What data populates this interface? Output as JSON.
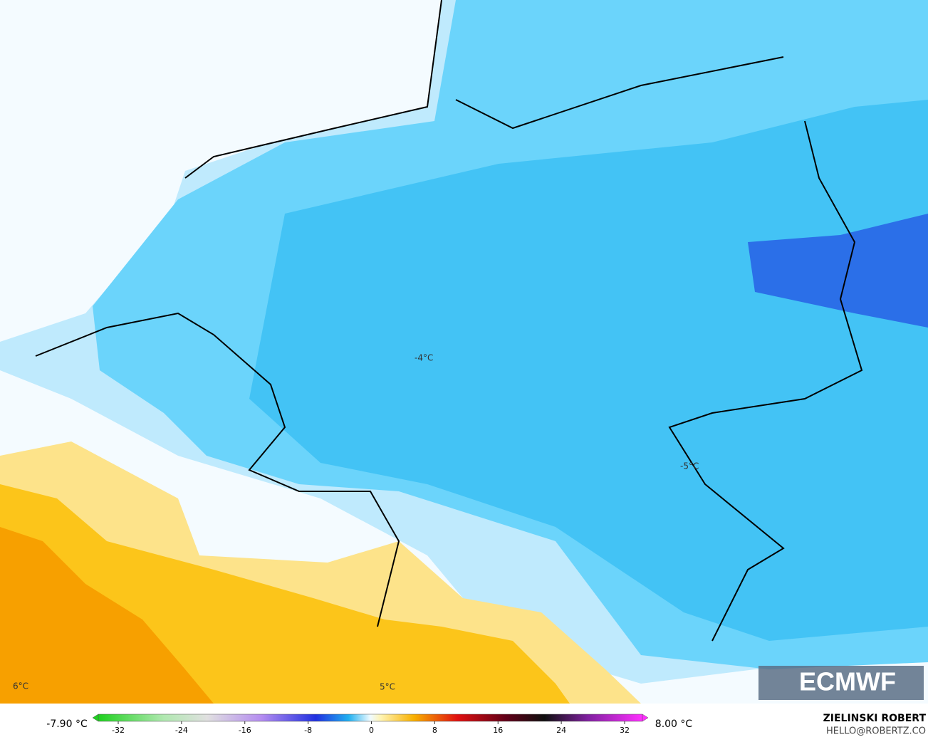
{
  "map": {
    "labels": [
      "-4°C",
      "-5°C",
      "6°C",
      "5°C"
    ],
    "logo": "ECMWF"
  },
  "colorbar": {
    "min_label": "-7.90 °C",
    "max_label": "8.00 °C",
    "ticks": [
      -32,
      -24,
      -16,
      -8,
      0,
      8,
      16,
      24,
      32
    ]
  },
  "credit": {
    "name": "ZIELINSKI ROBERT",
    "contact": "HELLO@ROBERTZ.CO"
  }
}
